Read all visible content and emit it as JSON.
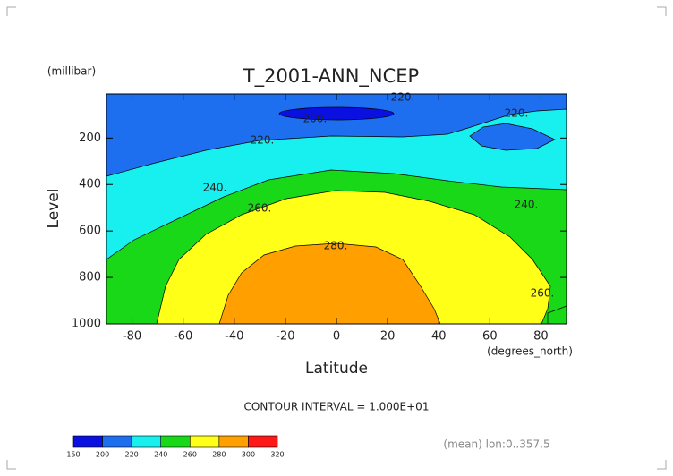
{
  "chart_data": {
    "type": "contour",
    "title": "T_2001-ANN_NCEP",
    "y_unit_label": "(millibar)",
    "ylabel": "Level",
    "xlabel": "Latitude",
    "x_unit_label": "(degrees_north)",
    "xlim": [
      -90,
      90
    ],
    "xticks": [
      -80,
      -60,
      -40,
      -20,
      0,
      20,
      40,
      60,
      80
    ],
    "ylim": [
      1000,
      10
    ],
    "yticks": [
      200,
      400,
      600,
      800,
      1000
    ],
    "levels": [
      150,
      200,
      220,
      240,
      260,
      280,
      300,
      320
    ],
    "colors": [
      "#0a10e0",
      "#1e6ef0",
      "#18f0f0",
      "#18d818",
      "#ffff18",
      "#ffa000",
      "#ff1818"
    ],
    "contour_labels": [
      {
        "value": 220,
        "label": "220."
      },
      {
        "value": 200,
        "label": "200."
      },
      {
        "value": 220,
        "label": "220."
      },
      {
        "value": 220,
        "label": "220."
      },
      {
        "value": 240,
        "label": "240."
      },
      {
        "value": 260,
        "label": "260."
      },
      {
        "value": 240,
        "label": "240."
      },
      {
        "value": 280,
        "label": "280."
      },
      {
        "value": 260,
        "label": "260."
      }
    ],
    "annotation": "CONTOUR INTERVAL = 1.000E+01",
    "footer": "(mean) lon:0..357.5"
  }
}
